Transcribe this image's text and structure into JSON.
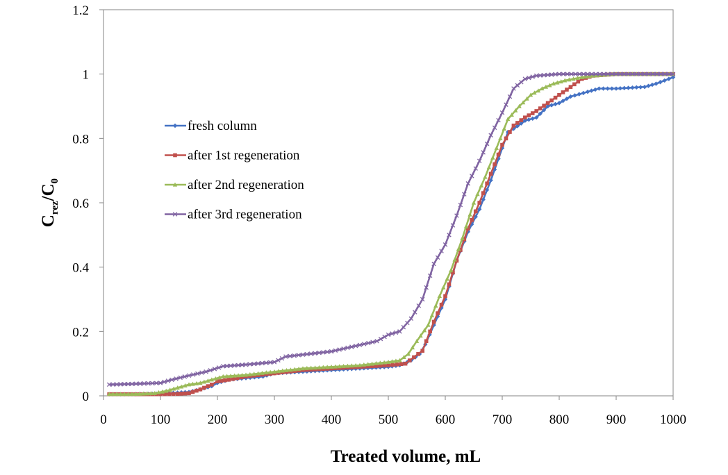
{
  "chart_data": {
    "type": "line",
    "title": "",
    "xlabel": "Treated volume, mL",
    "ylabel": {
      "base": "C",
      "sub": "rez",
      "sep": "/C",
      "sub2": "0"
    },
    "xlim": [
      0,
      1000
    ],
    "ylim": [
      0,
      1.2
    ],
    "xticks": [
      "0",
      "100",
      "200",
      "300",
      "400",
      "500",
      "600",
      "700",
      "800",
      "900",
      "1000"
    ],
    "yticks": [
      "0",
      "0.2",
      "0.4",
      "0.6",
      "0.8",
      "1",
      "1.2"
    ],
    "grid": false,
    "legend_position": "left-center",
    "series": [
      {
        "name": "fresh column",
        "color": "#4472C4",
        "marker": "diamond",
        "points": [
          [
            10,
            0.005
          ],
          [
            50,
            0.005
          ],
          [
            100,
            0.007
          ],
          [
            130,
            0.01
          ],
          [
            150,
            0.012
          ],
          [
            170,
            0.02
          ],
          [
            190,
            0.03
          ],
          [
            200,
            0.04
          ],
          [
            220,
            0.05
          ],
          [
            250,
            0.055
          ],
          [
            280,
            0.06
          ],
          [
            300,
            0.07
          ],
          [
            350,
            0.075
          ],
          [
            400,
            0.08
          ],
          [
            450,
            0.085
          ],
          [
            500,
            0.09
          ],
          [
            520,
            0.095
          ],
          [
            540,
            0.11
          ],
          [
            555,
            0.13
          ],
          [
            565,
            0.16
          ],
          [
            580,
            0.22
          ],
          [
            600,
            0.3
          ],
          [
            620,
            0.42
          ],
          [
            640,
            0.51
          ],
          [
            660,
            0.58
          ],
          [
            680,
            0.67
          ],
          [
            700,
            0.77
          ],
          [
            710,
            0.82
          ],
          [
            720,
            0.83
          ],
          [
            740,
            0.855
          ],
          [
            760,
            0.865
          ],
          [
            780,
            0.9
          ],
          [
            800,
            0.91
          ],
          [
            820,
            0.93
          ],
          [
            850,
            0.945
          ],
          [
            870,
            0.955
          ],
          [
            900,
            0.955
          ],
          [
            950,
            0.96
          ],
          [
            970,
            0.97
          ],
          [
            985,
            0.98
          ],
          [
            1000,
            0.99
          ]
        ]
      },
      {
        "name": "after 1st regeneration",
        "color": "#C0504D",
        "marker": "square",
        "points": [
          [
            10,
            0.005
          ],
          [
            50,
            0.005
          ],
          [
            100,
            0.005
          ],
          [
            130,
            0.006
          ],
          [
            150,
            0.008
          ],
          [
            170,
            0.02
          ],
          [
            190,
            0.035
          ],
          [
            200,
            0.045
          ],
          [
            220,
            0.05
          ],
          [
            250,
            0.06
          ],
          [
            300,
            0.07
          ],
          [
            350,
            0.08
          ],
          [
            400,
            0.085
          ],
          [
            450,
            0.09
          ],
          [
            500,
            0.095
          ],
          [
            530,
            0.1
          ],
          [
            545,
            0.12
          ],
          [
            560,
            0.14
          ],
          [
            580,
            0.23
          ],
          [
            600,
            0.31
          ],
          [
            620,
            0.42
          ],
          [
            640,
            0.52
          ],
          [
            660,
            0.6
          ],
          [
            680,
            0.69
          ],
          [
            700,
            0.78
          ],
          [
            720,
            0.84
          ],
          [
            740,
            0.865
          ],
          [
            760,
            0.885
          ],
          [
            780,
            0.91
          ],
          [
            800,
            0.935
          ],
          [
            820,
            0.96
          ],
          [
            840,
            0.985
          ],
          [
            860,
            0.995
          ],
          [
            900,
            1.0
          ],
          [
            1000,
            1.0
          ]
        ]
      },
      {
        "name": "after 2nd regeneration",
        "color": "#9BBB59",
        "marker": "triangle",
        "points": [
          [
            10,
            0.005
          ],
          [
            50,
            0.005
          ],
          [
            90,
            0.008
          ],
          [
            110,
            0.015
          ],
          [
            130,
            0.025
          ],
          [
            150,
            0.035
          ],
          [
            170,
            0.04
          ],
          [
            190,
            0.05
          ],
          [
            210,
            0.06
          ],
          [
            250,
            0.065
          ],
          [
            300,
            0.075
          ],
          [
            350,
            0.085
          ],
          [
            400,
            0.09
          ],
          [
            450,
            0.095
          ],
          [
            500,
            0.105
          ],
          [
            520,
            0.11
          ],
          [
            535,
            0.13
          ],
          [
            550,
            0.17
          ],
          [
            570,
            0.22
          ],
          [
            590,
            0.31
          ],
          [
            610,
            0.39
          ],
          [
            630,
            0.49
          ],
          [
            650,
            0.6
          ],
          [
            670,
            0.68
          ],
          [
            690,
            0.77
          ],
          [
            710,
            0.86
          ],
          [
            730,
            0.9
          ],
          [
            750,
            0.935
          ],
          [
            770,
            0.955
          ],
          [
            790,
            0.97
          ],
          [
            810,
            0.98
          ],
          [
            840,
            0.99
          ],
          [
            860,
            0.995
          ],
          [
            900,
            1.0
          ],
          [
            1000,
            1.0
          ]
        ]
      },
      {
        "name": "after 3rd regeneration",
        "color": "#8064A2",
        "marker": "cross",
        "points": [
          [
            10,
            0.035
          ],
          [
            50,
            0.037
          ],
          [
            100,
            0.04
          ],
          [
            120,
            0.05
          ],
          [
            150,
            0.063
          ],
          [
            180,
            0.075
          ],
          [
            210,
            0.092
          ],
          [
            250,
            0.097
          ],
          [
            300,
            0.105
          ],
          [
            320,
            0.122
          ],
          [
            350,
            0.128
          ],
          [
            400,
            0.138
          ],
          [
            450,
            0.158
          ],
          [
            480,
            0.17
          ],
          [
            500,
            0.19
          ],
          [
            520,
            0.2
          ],
          [
            540,
            0.24
          ],
          [
            560,
            0.3
          ],
          [
            580,
            0.41
          ],
          [
            600,
            0.47
          ],
          [
            620,
            0.56
          ],
          [
            640,
            0.66
          ],
          [
            660,
            0.73
          ],
          [
            680,
            0.81
          ],
          [
            700,
            0.88
          ],
          [
            720,
            0.955
          ],
          [
            740,
            0.985
          ],
          [
            760,
            0.995
          ],
          [
            800,
            1.0
          ],
          [
            900,
            1.0
          ],
          [
            1000,
            1.0
          ]
        ]
      }
    ]
  }
}
